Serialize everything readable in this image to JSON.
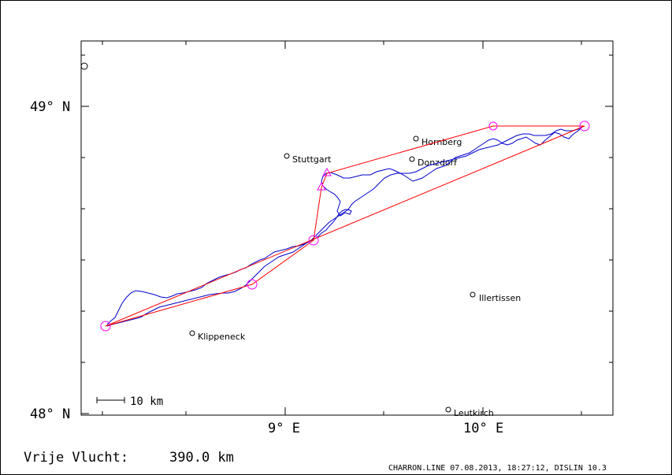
{
  "map": {
    "lat_labels": {
      "n49": "49° N",
      "n48": "48° N"
    },
    "lon_labels": {
      "e9": "9° E",
      "e10": "10° E"
    },
    "scale_bar": "10 km",
    "places": [
      {
        "name": "Stuttgart"
      },
      {
        "name": "Hornberg"
      },
      {
        "name": "Donzdorf"
      },
      {
        "name": "Illertissen"
      },
      {
        "name": "Klippeneck"
      },
      {
        "name": "Leutkirch"
      }
    ],
    "colors": {
      "track": "#0000cc",
      "route": "#ff0000",
      "turnpoint": "#ff00ff"
    }
  },
  "footer": {
    "distance_label": "Vrije Vlucht:",
    "distance_value": "390.0 km",
    "info": "CHARRON.LINE 07.08.2013, 18:27:12, DISLIN 10.3"
  }
}
